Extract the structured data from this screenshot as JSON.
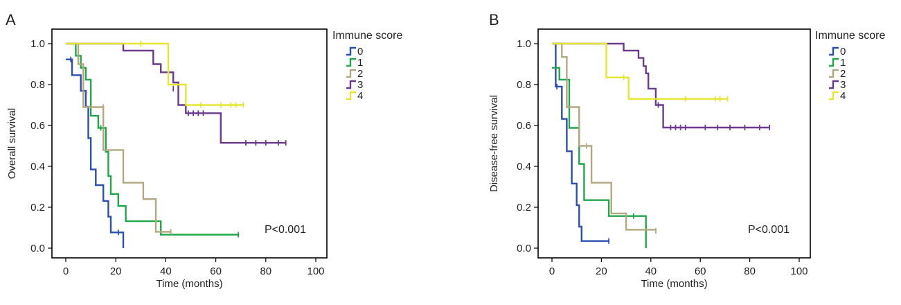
{
  "chart_data": [
    {
      "type": "line",
      "subtype": "kaplan-meier",
      "panel_label": "A",
      "xlabel": "Time (months)",
      "ylabel": "Overall survival",
      "xlim": [
        0,
        100
      ],
      "ylim": [
        0,
        1.0
      ],
      "xticks": [
        "0",
        "20",
        "40",
        "60",
        "80",
        "100"
      ],
      "yticks": [
        "0.0",
        "0.2",
        "0.4",
        "0.6",
        "0.8",
        "1.0"
      ],
      "legend_title": "Immune score",
      "legend_placement": "outside-right-top",
      "annotation": "P<0.001",
      "series": [
        {
          "name": "0",
          "color": "#2b4fb0",
          "steps": [
            [
              0,
              0.923
            ],
            [
              2.5,
              0.923
            ],
            [
              2.5,
              0.846
            ],
            [
              6,
              0.846
            ],
            [
              6,
              0.769
            ],
            [
              8,
              0.769
            ],
            [
              8,
              0.692
            ],
            [
              9,
              0.692
            ],
            [
              9,
              0.538
            ],
            [
              10,
              0.538
            ],
            [
              10,
              0.385
            ],
            [
              12,
              0.385
            ],
            [
              12,
              0.308
            ],
            [
              15,
              0.308
            ],
            [
              15,
              0.231
            ],
            [
              17,
              0.231
            ],
            [
              17,
              0.154
            ],
            [
              18,
              0.154
            ],
            [
              18,
              0.077
            ],
            [
              23,
              0.077
            ],
            [
              23,
              0.0
            ]
          ],
          "censors": [
            [
              2,
              0.923
            ],
            [
              21,
              0.077
            ]
          ]
        },
        {
          "name": "1",
          "color": "#1fa84a",
          "steps": [
            [
              0,
              1.0
            ],
            [
              4,
              1.0
            ],
            [
              4,
              0.941
            ],
            [
              6,
              0.941
            ],
            [
              6,
              0.882
            ],
            [
              8,
              0.882
            ],
            [
              8,
              0.824
            ],
            [
              10,
              0.824
            ],
            [
              10,
              0.647
            ],
            [
              13,
              0.647
            ],
            [
              13,
              0.588
            ],
            [
              16,
              0.588
            ],
            [
              16,
              0.471
            ],
            [
              17,
              0.471
            ],
            [
              17,
              0.353
            ],
            [
              18,
              0.353
            ],
            [
              18,
              0.265
            ],
            [
              21,
              0.265
            ],
            [
              21,
              0.206
            ],
            [
              24,
              0.206
            ],
            [
              24,
              0.132
            ],
            [
              38,
              0.132
            ],
            [
              38,
              0.066
            ],
            [
              69,
              0.066
            ]
          ],
          "censors": [
            [
              14,
              0.588
            ],
            [
              69,
              0.066
            ]
          ]
        },
        {
          "name": "2",
          "color": "#b3a77f",
          "steps": [
            [
              0,
              1.0
            ],
            [
              5,
              1.0
            ],
            [
              5,
              0.9
            ],
            [
              7,
              0.9
            ],
            [
              7,
              0.69
            ],
            [
              15,
              0.69
            ],
            [
              15,
              0.48
            ],
            [
              23,
              0.48
            ],
            [
              23,
              0.32
            ],
            [
              31,
              0.32
            ],
            [
              31,
              0.24
            ],
            [
              36,
              0.24
            ],
            [
              36,
              0.08
            ],
            [
              42,
              0.08
            ]
          ],
          "censors": [
            [
              15,
              0.69
            ],
            [
              42,
              0.08
            ]
          ]
        },
        {
          "name": "3",
          "color": "#6b3a8c",
          "steps": [
            [
              0,
              1.0
            ],
            [
              23,
              1.0
            ],
            [
              23,
              0.966
            ],
            [
              35,
              0.966
            ],
            [
              35,
              0.9
            ],
            [
              38,
              0.9
            ],
            [
              38,
              0.86
            ],
            [
              43,
              0.86
            ],
            [
              43,
              0.81
            ],
            [
              45,
              0.81
            ],
            [
              45,
              0.7
            ],
            [
              48,
              0.7
            ],
            [
              48,
              0.66
            ],
            [
              62,
              0.66
            ],
            [
              62,
              0.515
            ],
            [
              88,
              0.515
            ]
          ],
          "censors": [
            [
              43,
              0.78
            ],
            [
              49,
              0.66
            ],
            [
              51,
              0.66
            ],
            [
              53,
              0.66
            ],
            [
              55,
              0.66
            ],
            [
              72,
              0.515
            ],
            [
              76,
              0.515
            ],
            [
              80,
              0.515
            ],
            [
              85,
              0.515
            ],
            [
              88,
              0.515
            ]
          ]
        },
        {
          "name": "4",
          "color": "#e6e62e",
          "steps": [
            [
              0,
              1.0
            ],
            [
              41,
              1.0
            ],
            [
              41,
              0.8
            ],
            [
              48,
              0.8
            ],
            [
              48,
              0.7
            ],
            [
              71,
              0.7
            ]
          ],
          "censors": [
            [
              30,
              1.0
            ],
            [
              54,
              0.7
            ],
            [
              62,
              0.7
            ],
            [
              66,
              0.7
            ],
            [
              68,
              0.7
            ],
            [
              71,
              0.7
            ]
          ]
        }
      ]
    },
    {
      "type": "line",
      "subtype": "kaplan-meier",
      "panel_label": "B",
      "xlabel": "Time (months)",
      "ylabel": "Disease-free survival",
      "xlim": [
        0,
        100
      ],
      "ylim": [
        0,
        1.0
      ],
      "xticks": [
        "0",
        "20",
        "40",
        "60",
        "80",
        "100"
      ],
      "yticks": [
        "0.0",
        "0.2",
        "0.4",
        "0.6",
        "0.8",
        "1.0"
      ],
      "legend_title": "Immune score",
      "legend_placement": "outside-right-top",
      "annotation": "P<0.001",
      "series": [
        {
          "name": "0",
          "color": "#2b4fb0",
          "steps": [
            [
              0,
              1.0
            ],
            [
              1.5,
              1.0
            ],
            [
              1.5,
              0.79
            ],
            [
              4,
              0.79
            ],
            [
              4,
              0.632
            ],
            [
              6,
              0.632
            ],
            [
              6,
              0.474
            ],
            [
              8,
              0.474
            ],
            [
              8,
              0.316
            ],
            [
              10,
              0.316
            ],
            [
              10,
              0.21
            ],
            [
              11,
              0.21
            ],
            [
              11,
              0.105
            ],
            [
              12,
              0.105
            ],
            [
              12,
              0.035
            ],
            [
              23,
              0.035
            ]
          ],
          "censors": [
            [
              2,
              0.79
            ],
            [
              23,
              0.035
            ]
          ]
        },
        {
          "name": "1",
          "color": "#1fa84a",
          "steps": [
            [
              0,
              0.882
            ],
            [
              3,
              0.882
            ],
            [
              3,
              0.824
            ],
            [
              7,
              0.824
            ],
            [
              7,
              0.588
            ],
            [
              11,
              0.588
            ],
            [
              11,
              0.412
            ],
            [
              13,
              0.412
            ],
            [
              13,
              0.235
            ],
            [
              23,
              0.235
            ],
            [
              23,
              0.157
            ],
            [
              38,
              0.157
            ],
            [
              38,
              0.0
            ]
          ],
          "censors": [
            [
              33,
              0.157
            ]
          ]
        },
        {
          "name": "2",
          "color": "#b3a77f",
          "steps": [
            [
              0,
              1.0
            ],
            [
              4,
              1.0
            ],
            [
              4,
              0.935
            ],
            [
              6,
              0.935
            ],
            [
              6,
              0.69
            ],
            [
              11,
              0.69
            ],
            [
              11,
              0.5
            ],
            [
              16,
              0.5
            ],
            [
              16,
              0.32
            ],
            [
              24,
              0.32
            ],
            [
              24,
              0.17
            ],
            [
              30,
              0.17
            ],
            [
              30,
              0.09
            ],
            [
              42,
              0.09
            ]
          ],
          "censors": [
            [
              14,
              0.5
            ],
            [
              42,
              0.085
            ]
          ]
        },
        {
          "name": "3",
          "color": "#6b3a8c",
          "steps": [
            [
              0,
              1.0
            ],
            [
              29,
              1.0
            ],
            [
              29,
              0.966
            ],
            [
              35,
              0.966
            ],
            [
              35,
              0.93
            ],
            [
              37,
              0.93
            ],
            [
              37,
              0.89
            ],
            [
              38,
              0.89
            ],
            [
              38,
              0.855
            ],
            [
              39,
              0.855
            ],
            [
              39,
              0.78
            ],
            [
              42,
              0.78
            ],
            [
              42,
              0.7
            ],
            [
              45,
              0.7
            ],
            [
              45,
              0.59
            ],
            [
              88,
              0.59
            ]
          ],
          "censors": [
            [
              43,
              0.7
            ],
            [
              48,
              0.59
            ],
            [
              50,
              0.59
            ],
            [
              52,
              0.59
            ],
            [
              54,
              0.59
            ],
            [
              62,
              0.59
            ],
            [
              67,
              0.59
            ],
            [
              72,
              0.59
            ],
            [
              78,
              0.59
            ],
            [
              84,
              0.59
            ],
            [
              88,
              0.59
            ]
          ]
        },
        {
          "name": "4",
          "color": "#e6e62e",
          "steps": [
            [
              0,
              1.0
            ],
            [
              22,
              1.0
            ],
            [
              22,
              0.835
            ],
            [
              31,
              0.835
            ],
            [
              31,
              0.73
            ],
            [
              71,
              0.73
            ]
          ],
          "censors": [
            [
              29,
              0.835
            ],
            [
              54,
              0.73
            ],
            [
              66,
              0.73
            ],
            [
              68,
              0.73
            ],
            [
              71,
              0.73
            ]
          ]
        }
      ]
    }
  ]
}
